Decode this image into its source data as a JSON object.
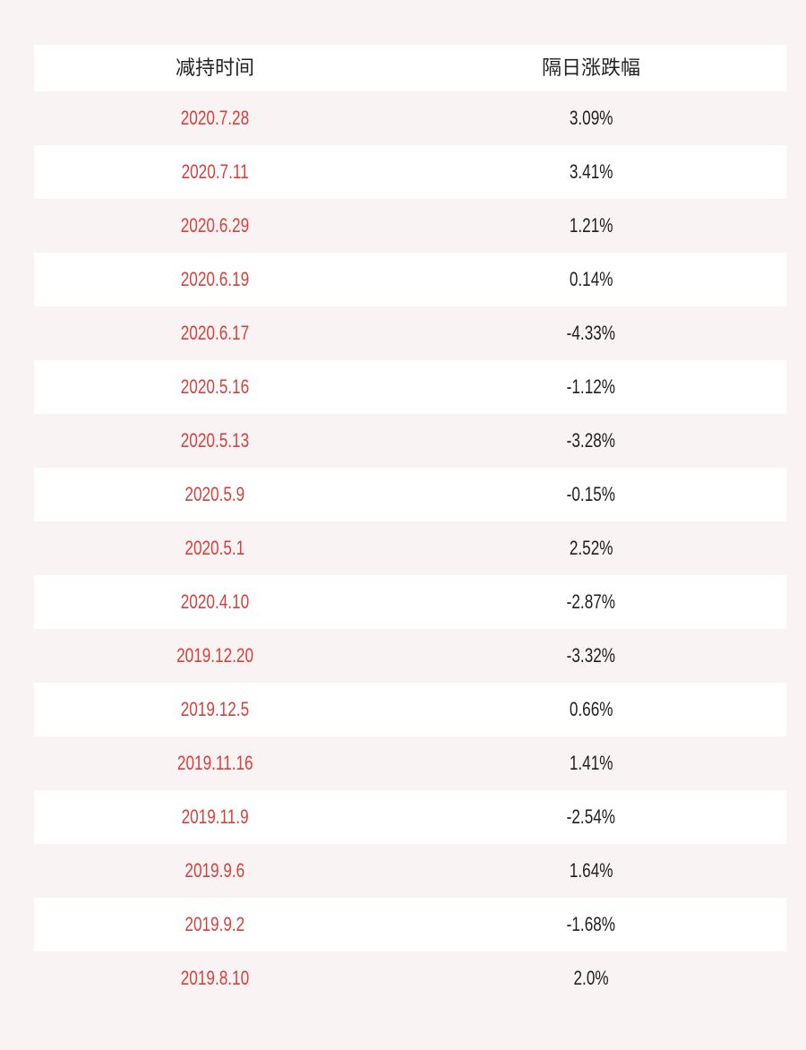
{
  "colors": {
    "page_background": "#f9f3f4",
    "row_background_white": "#ffffff",
    "row_background_pink": "#f9f3f4",
    "date_text": "#d5403d",
    "value_text": "#1f1f1f",
    "header_text": "#222222"
  },
  "chart_data": {
    "type": "table",
    "columns": [
      "减持时间",
      "隔日涨跌幅"
    ],
    "rows": [
      {
        "date": "2020.7.28",
        "change": "3.09%"
      },
      {
        "date": "2020.7.11",
        "change": "3.41%"
      },
      {
        "date": "2020.6.29",
        "change": "1.21%"
      },
      {
        "date": "2020.6.19",
        "change": "0.14%"
      },
      {
        "date": "2020.6.17",
        "change": "-4.33%"
      },
      {
        "date": "2020.5.16",
        "change": "-1.12%"
      },
      {
        "date": "2020.5.13",
        "change": "-3.28%"
      },
      {
        "date": "2020.5.9",
        "change": "-0.15%"
      },
      {
        "date": "2020.5.1",
        "change": "2.52%"
      },
      {
        "date": "2020.4.10",
        "change": "-2.87%"
      },
      {
        "date": "2019.12.20",
        "change": "-3.32%"
      },
      {
        "date": "2019.12.5",
        "change": "0.66%"
      },
      {
        "date": "2019.11.16",
        "change": "1.41%"
      },
      {
        "date": "2019.11.9",
        "change": "-2.54%"
      },
      {
        "date": "2019.9.6",
        "change": "1.64%"
      },
      {
        "date": "2019.9.2",
        "change": "-1.68%"
      },
      {
        "date": "2019.8.10",
        "change": "2.0%"
      }
    ],
    "change_values_pct": [
      3.09,
      3.41,
      1.21,
      0.14,
      -4.33,
      -1.12,
      -3.28,
      -0.15,
      2.52,
      -2.87,
      -3.32,
      0.66,
      1.41,
      -2.54,
      1.64,
      -1.68,
      2.0
    ]
  }
}
